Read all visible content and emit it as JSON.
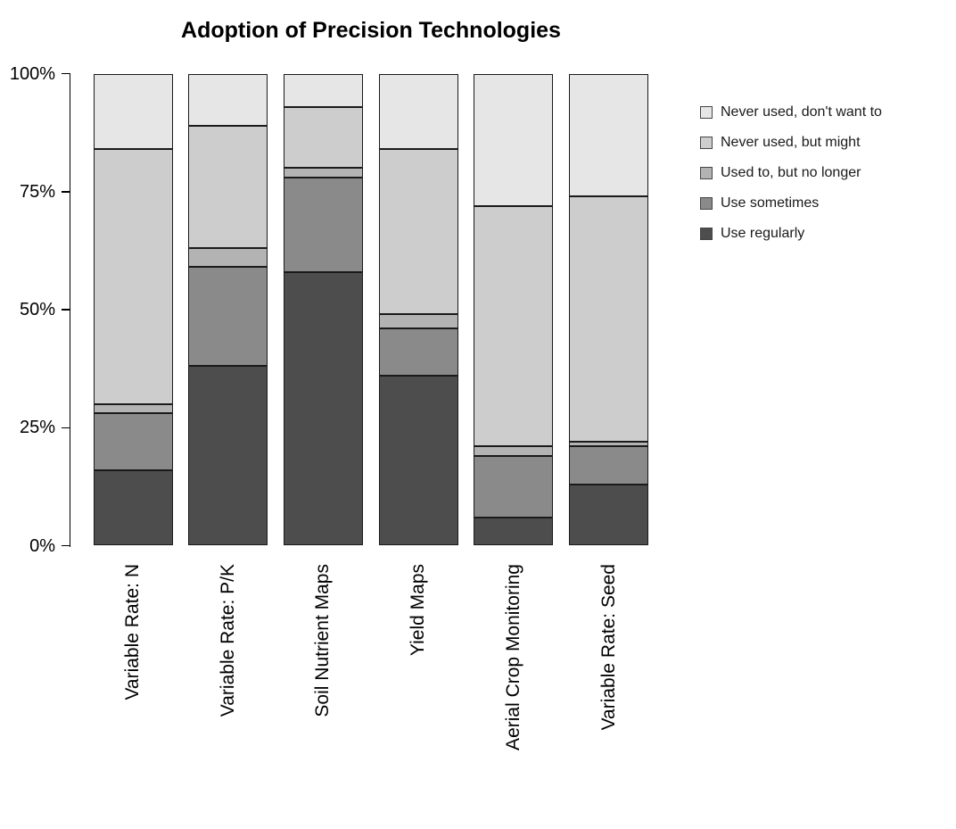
{
  "page": {
    "background": "#ffffff",
    "text_color": "#000000"
  },
  "chart_data": {
    "type": "bar",
    "variant": "stacked_percent_vertical",
    "title": "Adoption of Precision Technologies",
    "categories": [
      "Variable Rate: N",
      "Variable Rate: P/K",
      "Soil Nutrient Maps",
      "Yield Maps",
      "Aerial Crop Monitoring",
      "Variable Rate: Seed"
    ],
    "series": [
      {
        "name": "Use regularly",
        "color": "#4D4D4D",
        "values": [
          16,
          38,
          58,
          36,
          6,
          13
        ]
      },
      {
        "name": "Use sometimes",
        "color": "#8A8A8A",
        "values": [
          12,
          21,
          20,
          10,
          13,
          8
        ]
      },
      {
        "name": "Used to, but no longer",
        "color": "#B3B3B3",
        "values": [
          2,
          4,
          2,
          3,
          2,
          1
        ]
      },
      {
        "name": "Never used, but might",
        "color": "#CDCDCD",
        "values": [
          54,
          26,
          13,
          35,
          51,
          52
        ]
      },
      {
        "name": "Never used, don't want to",
        "color": "#E6E6E6",
        "values": [
          16,
          11,
          7,
          16,
          28,
          26
        ]
      }
    ],
    "stack_bottom_to_top": [
      "Use regularly",
      "Use sometimes",
      "Used to, but no longer",
      "Never used, but might",
      "Never used, don't want to"
    ],
    "y_axis": {
      "range": [
        0,
        100
      ],
      "ticks": [
        {
          "value": 0,
          "label": "0%"
        },
        {
          "value": 25,
          "label": "25%"
        },
        {
          "value": 50,
          "label": "50%"
        },
        {
          "value": 75,
          "label": "75%"
        },
        {
          "value": 100,
          "label": "100%"
        }
      ]
    },
    "legend": {
      "position": "right",
      "order_top_to_bottom": [
        "Never used, don't want to",
        "Never used, but might",
        "Used to, but no longer",
        "Use sometimes",
        "Use regularly"
      ]
    },
    "grid": false,
    "bar_border_color": "#1A1A1A",
    "axis_color": "#000000"
  }
}
